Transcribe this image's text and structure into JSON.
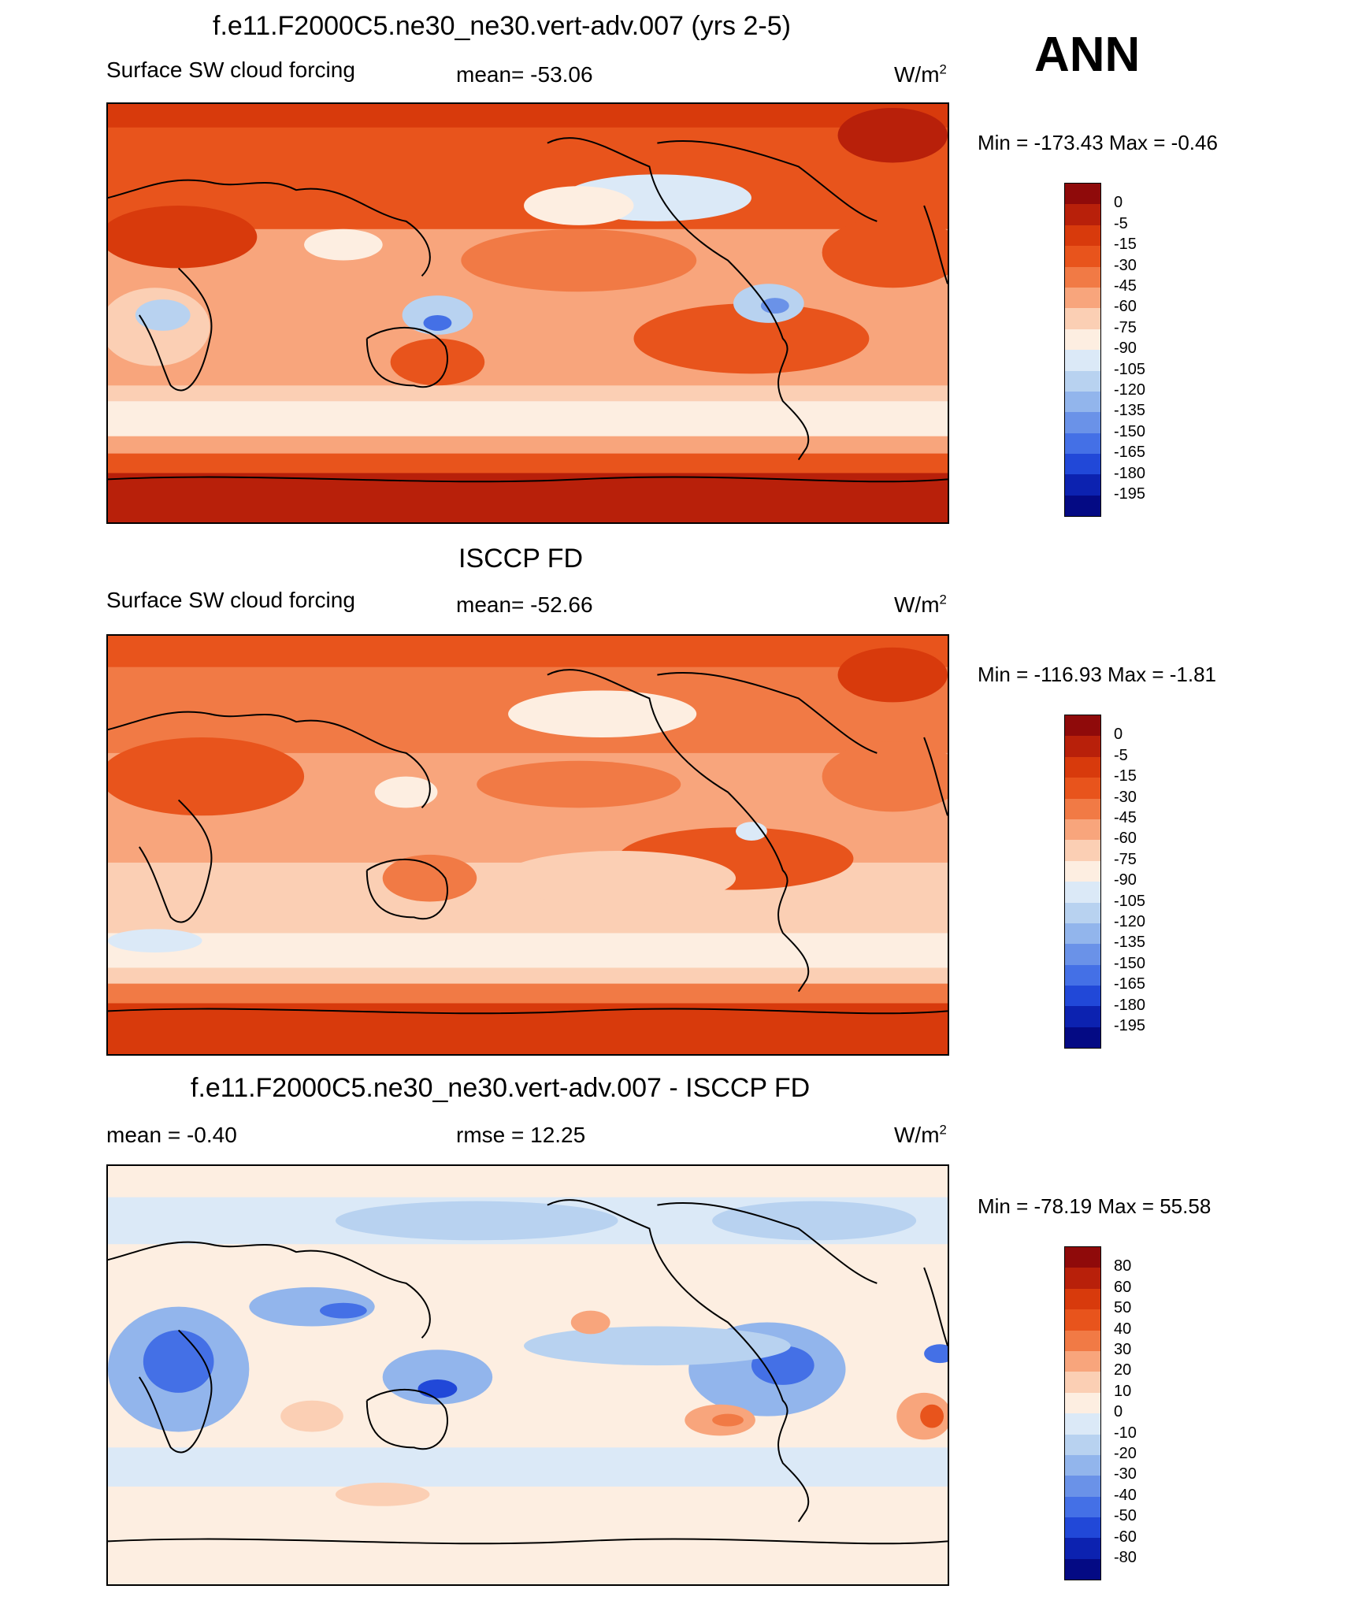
{
  "season": "ANN",
  "units_base": "W/m",
  "units_sup": "2",
  "panels": [
    {
      "id": "model",
      "title": "f.e11.F2000C5.ne30_ne30.vert-adv.007 (yrs 2-5)",
      "left_label": "Surface SW cloud forcing",
      "center_label": "mean= -53.06",
      "minmax": "Min = -173.43 Max =  -0.46",
      "levels": [
        "0",
        "-5",
        "-15",
        "-30",
        "-45",
        "-60",
        "-75",
        "-90",
        "-105",
        "-120",
        "-135",
        "-150",
        "-165",
        "-180",
        "-195"
      ]
    },
    {
      "id": "obs",
      "title": "ISCCP FD",
      "left_label": "Surface SW cloud forcing",
      "center_label": "mean= -52.66",
      "minmax": "Min = -116.93 Max =  -1.81",
      "levels": [
        "0",
        "-5",
        "-15",
        "-30",
        "-45",
        "-60",
        "-75",
        "-90",
        "-105",
        "-120",
        "-135",
        "-150",
        "-165",
        "-180",
        "-195"
      ]
    },
    {
      "id": "diff",
      "title": "f.e11.F2000C5.ne30_ne30.vert-adv.007 - ISCCP FD",
      "left_label": "mean =  -0.40",
      "center_label": "rmse =  12.25",
      "minmax": "Min = -78.19 Max =  55.58",
      "levels": [
        "80",
        "60",
        "50",
        "40",
        "30",
        "20",
        "10",
        "0",
        "-10",
        "-20",
        "-30",
        "-40",
        "-50",
        "-60",
        "-80"
      ]
    }
  ],
  "colorbar_colors": [
    "#8f0a0a",
    "#b8200a",
    "#d83a0c",
    "#e8541c",
    "#f17a45",
    "#f8a57c",
    "#fbcfb4",
    "#fdeee1",
    "#dbe9f7",
    "#b8d2f0",
    "#92b5ec",
    "#6a92e8",
    "#4470e6",
    "#2148d8",
    "#0c22b0",
    "#040a84"
  ],
  "colors": {
    "c0": "#b8200a",
    "c1": "#d83a0c",
    "c2": "#e8541c",
    "c3": "#f17a45",
    "c4": "#f8a57c",
    "c5": "#fbcfb4",
    "c6": "#fdeee1",
    "b1": "#dbe9f7",
    "b2": "#b8d2f0",
    "b3": "#92b5ec",
    "b4": "#6a92e8",
    "b5": "#4470e6",
    "b6": "#2148d8",
    "b7": "#0c22b0"
  }
}
